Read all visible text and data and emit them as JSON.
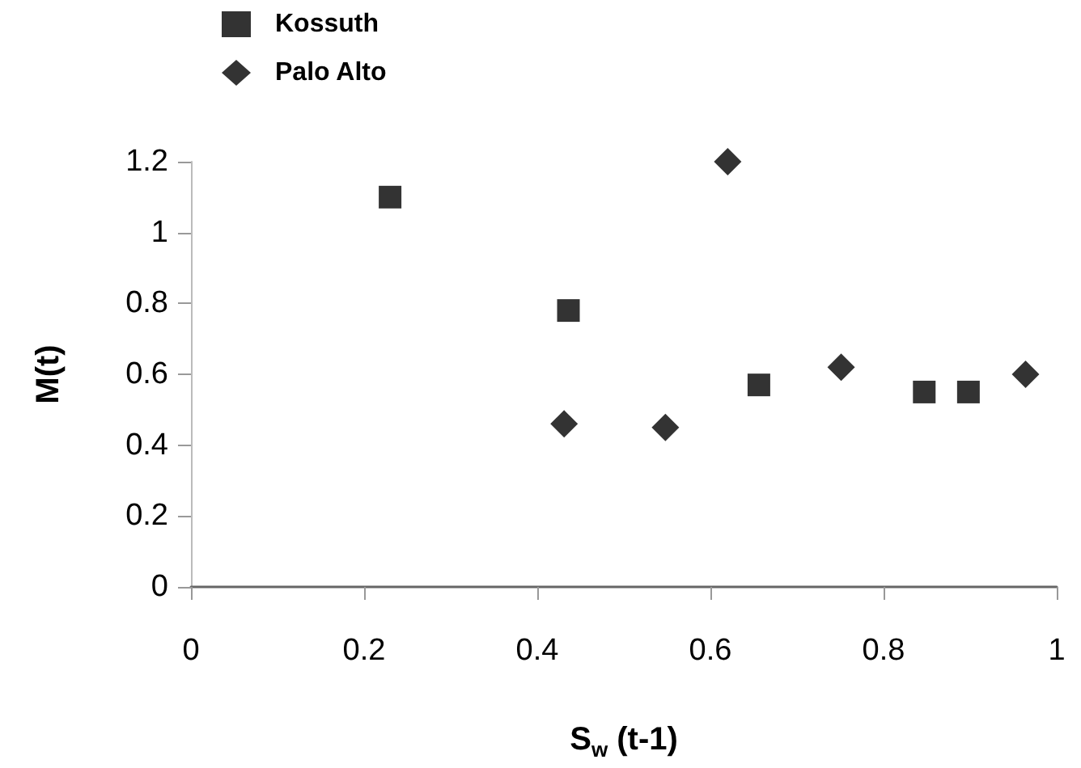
{
  "chart_data": {
    "type": "scatter",
    "xlabel": "S$_{w}$ (t-1)",
    "ylabel": "M(t)",
    "xlim": [
      0,
      1
    ],
    "xticks": [
      0,
      0.2,
      0.4,
      0.6,
      0.8,
      1
    ],
    "ylim": [
      0,
      1.2
    ],
    "yticks": [
      0,
      0.2,
      0.4,
      0.6,
      0.8,
      1,
      1.2
    ],
    "grid": false,
    "legend": "top left",
    "series": [
      {
        "name": "Kossuth",
        "color": "#000000",
        "marker": "square",
        "x": [
          0.23,
          0.436,
          0.656,
          0.847,
          0.898
        ],
        "values": [
          1.1,
          0.78,
          0.57,
          0.55,
          0.55
        ]
      },
      {
        "name": "Palo Alto",
        "color": "#000000",
        "marker": "diamond",
        "x": [
          0.431,
          0.548,
          0.62,
          0.751,
          0.964
        ],
        "values": [
          0.46,
          0.45,
          1.2,
          0.62,
          0.6
        ]
      }
    ]
  }
}
